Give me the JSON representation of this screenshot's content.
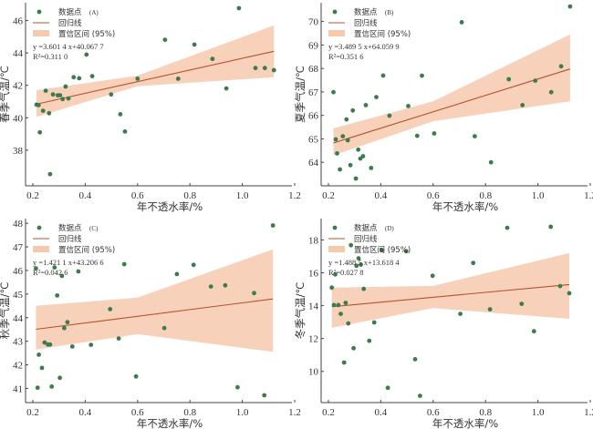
{
  "figure": {
    "colors": {
      "point": "#3d7a4e",
      "line": "#b5532a",
      "band": "#f6c9ad",
      "axis": "#444444"
    },
    "legend": {
      "points": "数据点",
      "line": "回归线",
      "band": "置信区间 (95%)"
    }
  },
  "chart_data": [
    {
      "type": "scatter",
      "panel_label": "(A)",
      "xlabel": "年不透水率/%",
      "ylabel": "春季气温/℃",
      "xlim": [
        0.18,
        1.2
      ],
      "ylim": [
        35.8,
        47.1
      ],
      "xticks": [
        "0.2",
        "0.4",
        "0.6",
        "0.8",
        "1.0",
        "1.2"
      ],
      "yticks": [
        "38",
        "40",
        "42",
        "44",
        "46"
      ],
      "equation": "y =3.601 4 x+40.067 7",
      "r2": "R²=0.311 0",
      "slope": 3.6014,
      "intercept": 40.0677,
      "band": {
        "x0": 0.214,
        "x1": 1.121,
        "lo0": 40.05,
        "hi0": 41.7,
        "lom": 41.95,
        "him": 42.6,
        "xm": 0.6,
        "lo1": 42.5,
        "hi1": 45.7
      },
      "points": [
        [
          0.214,
          40.81
        ],
        [
          0.222,
          40.78
        ],
        [
          0.227,
          39.1
        ],
        [
          0.239,
          40.43
        ],
        [
          0.249,
          41.67
        ],
        [
          0.262,
          40.28
        ],
        [
          0.266,
          36.52
        ],
        [
          0.277,
          41.44
        ],
        [
          0.295,
          41.39
        ],
        [
          0.304,
          41.39
        ],
        [
          0.314,
          41.15
        ],
        [
          0.325,
          41.93
        ],
        [
          0.336,
          41.19
        ],
        [
          0.356,
          42.5
        ],
        [
          0.377,
          42.44
        ],
        [
          0.405,
          43.9
        ],
        [
          0.427,
          42.57
        ],
        [
          0.499,
          41.44
        ],
        [
          0.534,
          40.22
        ],
        [
          0.552,
          39.15
        ],
        [
          0.6,
          42.41
        ],
        [
          0.705,
          44.81
        ],
        [
          0.755,
          42.41
        ],
        [
          0.817,
          44.52
        ],
        [
          0.886,
          43.63
        ],
        [
          0.939,
          41.81
        ],
        [
          0.987,
          46.76
        ],
        [
          1.05,
          43.07
        ],
        [
          1.086,
          43.07
        ],
        [
          1.121,
          42.94
        ]
      ]
    },
    {
      "type": "scatter",
      "panel_label": "(B)",
      "xlabel": "年不透水率/%",
      "ylabel": "夏季气温/℃",
      "xlim": [
        0.18,
        1.2
      ],
      "ylim": [
        63.0,
        70.8
      ],
      "xticks": [
        "0.2",
        "0.4",
        "0.6",
        "0.8",
        "1.0",
        "1.2"
      ],
      "yticks": [
        "64",
        "65",
        "66",
        "67",
        "68",
        "69",
        "70"
      ],
      "equation": "y =3.489 5 x+64.059 9",
      "r2": "R²=0.351 6",
      "slope": 3.4895,
      "intercept": 64.0599,
      "band": {
        "x0": 0.219,
        "x1": 1.123,
        "lo0": 64.3,
        "hi0": 65.45,
        "lom": 65.75,
        "him": 66.6,
        "xm": 0.6,
        "lo1": 66.6,
        "hi1": 69.45
      },
      "points": [
        [
          0.219,
          66.99
        ],
        [
          0.228,
          64.98
        ],
        [
          0.233,
          64.38
        ],
        [
          0.244,
          63.7
        ],
        [
          0.255,
          65.11
        ],
        [
          0.269,
          65.83
        ],
        [
          0.274,
          64.94
        ],
        [
          0.284,
          63.88
        ],
        [
          0.293,
          66.21
        ],
        [
          0.305,
          63.31
        ],
        [
          0.314,
          64.54
        ],
        [
          0.322,
          64.16
        ],
        [
          0.332,
          64.26
        ],
        [
          0.343,
          66.44
        ],
        [
          0.363,
          63.76
        ],
        [
          0.383,
          66.78
        ],
        [
          0.409,
          67.7
        ],
        [
          0.433,
          65.99
        ],
        [
          0.505,
          66.4
        ],
        [
          0.539,
          65.13
        ],
        [
          0.557,
          67.69
        ],
        [
          0.604,
          65.23
        ],
        [
          0.709,
          69.97
        ],
        [
          0.759,
          65.11
        ],
        [
          0.821,
          64.0
        ],
        [
          0.889,
          67.54
        ],
        [
          0.941,
          66.44
        ],
        [
          0.99,
          67.48
        ],
        [
          1.051,
          66.99
        ],
        [
          1.089,
          68.09
        ],
        [
          1.123,
          70.64
        ]
      ]
    },
    {
      "type": "scatter",
      "panel_label": "(C)",
      "xlabel": "年不透水率/%",
      "ylabel": "秋季气温/℃",
      "xlim": [
        0.18,
        1.2
      ],
      "ylim": [
        40.4,
        48.2
      ],
      "xticks": [
        "0.2",
        "0.4",
        "0.6",
        "0.8",
        "1.0",
        "1.2"
      ],
      "yticks": [
        "41",
        "42",
        "43",
        "44",
        "45",
        "46",
        "47",
        "48"
      ],
      "equation": "y =1.421 1 x+43.206 6",
      "r2": "R²=0.042 6",
      "slope": 1.4211,
      "intercept": 43.2066,
      "band": {
        "x0": 0.212,
        "x1": 1.117,
        "lo0": 42.65,
        "hi0": 44.5,
        "lom": 43.3,
        "him": 44.85,
        "xm": 0.6,
        "lo1": 42.55,
        "hi1": 46.9
      },
      "points": [
        [
          0.212,
          46.09
        ],
        [
          0.218,
          41.03
        ],
        [
          0.223,
          42.43
        ],
        [
          0.235,
          41.87
        ],
        [
          0.245,
          42.95
        ],
        [
          0.258,
          42.86
        ],
        [
          0.266,
          42.86
        ],
        [
          0.272,
          41.08
        ],
        [
          0.283,
          46.13
        ],
        [
          0.293,
          44.94
        ],
        [
          0.303,
          41.45
        ],
        [
          0.311,
          45.77
        ],
        [
          0.32,
          43.56
        ],
        [
          0.332,
          43.81
        ],
        [
          0.351,
          42.78
        ],
        [
          0.374,
          45.96
        ],
        [
          0.422,
          42.85
        ],
        [
          0.495,
          44.36
        ],
        [
          0.528,
          43.12
        ],
        [
          0.549,
          46.27
        ],
        [
          0.594,
          41.51
        ],
        [
          0.702,
          43.56
        ],
        [
          0.75,
          45.85
        ],
        [
          0.814,
          46.24
        ],
        [
          0.88,
          45.32
        ],
        [
          0.935,
          45.37
        ],
        [
          0.982,
          41.05
        ],
        [
          1.045,
          45.04
        ],
        [
          1.084,
          40.71
        ],
        [
          1.117,
          47.91
        ]
      ]
    },
    {
      "type": "scatter",
      "panel_label": "(D)",
      "xlabel": "年不透水率/%",
      "ylabel": "冬季气温/℃",
      "xlim": [
        0.18,
        1.2
      ],
      "ylim": [
        8.1,
        19.3
      ],
      "xticks": [
        "0.2",
        "0.4",
        "0.6",
        "0.8",
        "1.0",
        "1.2"
      ],
      "yticks": [
        "10",
        "12",
        "14",
        "16",
        "18"
      ],
      "equation": "y =1.488 5 x+13.618 4",
      "r2": "R²=0.027 8",
      "slope": 1.4885,
      "intercept": 13.6184,
      "band": {
        "x0": 0.213,
        "x1": 1.12,
        "lo0": 12.65,
        "hi0": 15.1,
        "lom": 13.85,
        "him": 15.2,
        "xm": 0.6,
        "lo1": 13.2,
        "hi1": 17.2
      },
      "points": [
        [
          0.213,
          15.1
        ],
        [
          0.221,
          14.04
        ],
        [
          0.226,
          15.9
        ],
        [
          0.238,
          14.04
        ],
        [
          0.247,
          13.5
        ],
        [
          0.26,
          10.54
        ],
        [
          0.266,
          14.17
        ],
        [
          0.276,
          12.92
        ],
        [
          0.286,
          17.68
        ],
        [
          0.296,
          11.41
        ],
        [
          0.307,
          16.43
        ],
        [
          0.315,
          16.88
        ],
        [
          0.324,
          16.5
        ],
        [
          0.335,
          15.02
        ],
        [
          0.356,
          11.86
        ],
        [
          0.375,
          12.98
        ],
        [
          0.404,
          17.37
        ],
        [
          0.427,
          9.0
        ],
        [
          0.497,
          17.31
        ],
        [
          0.531,
          10.74
        ],
        [
          0.55,
          8.51
        ],
        [
          0.598,
          15.82
        ],
        [
          0.704,
          13.5
        ],
        [
          0.753,
          16.6
        ],
        [
          0.817,
          13.78
        ],
        [
          0.883,
          18.74
        ],
        [
          0.938,
          14.11
        ],
        [
          0.985,
          12.44
        ],
        [
          1.049,
          18.8
        ],
        [
          1.085,
          15.19
        ],
        [
          1.12,
          14.76
        ]
      ]
    }
  ]
}
